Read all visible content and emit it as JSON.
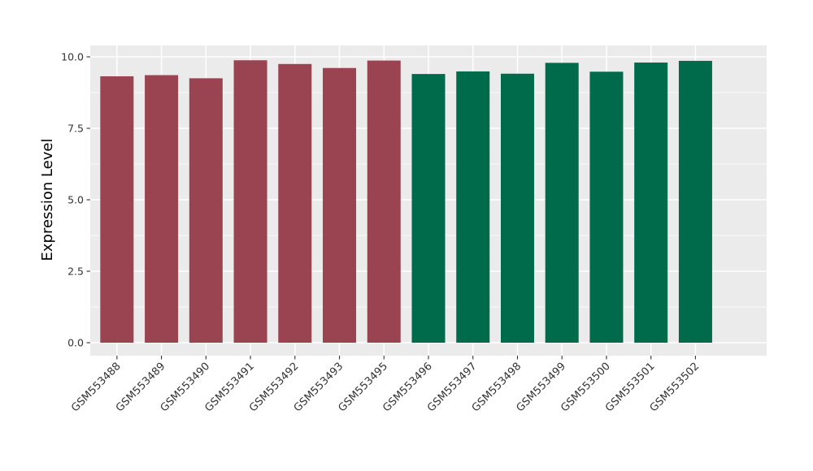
{
  "figure": {
    "background": "#FFFFFF",
    "panel_background": "#EBEBEB",
    "grid_major_color": "#FFFFFF",
    "grid_minor_color": "#FFFFFF",
    "tick_mark_color": "#333333",
    "tick_label_color": "#333333",
    "axis_title_color": "#000000"
  },
  "chart_data": {
    "type": "bar",
    "title": "",
    "xlabel": "",
    "ylabel": "Expression Level",
    "categories": [
      "GSM553488",
      "GSM553489",
      "GSM553490",
      "GSM553491",
      "GSM553492",
      "GSM553493",
      "GSM553495",
      "GSM553496",
      "GSM553497",
      "GSM553498",
      "GSM553499",
      "GSM553500",
      "GSM553501",
      "GSM553502"
    ],
    "values": [
      9.32,
      9.36,
      9.25,
      9.88,
      9.75,
      9.61,
      9.87,
      9.4,
      9.49,
      9.41,
      9.79,
      9.48,
      9.8,
      9.86
    ],
    "bar_colors": [
      "#9A4452",
      "#9A4452",
      "#9A4452",
      "#9A4452",
      "#9A4452",
      "#9A4452",
      "#9A4452",
      "#006B4A",
      "#006B4A",
      "#006B4A",
      "#006B4A",
      "#006B4A",
      "#006B4A",
      "#006B4A"
    ],
    "group_colors": {
      "left_group": "#9A4452",
      "right_group": "#006B4A"
    },
    "ylim": [
      0,
      10
    ],
    "yticks": [
      0,
      2.5,
      5,
      7.5,
      10
    ],
    "ytick_labels": [
      "0.0",
      "2.5",
      "5.0",
      "7.5",
      "10.0"
    ],
    "yminor_ticks": [
      1.25,
      3.75,
      6.25,
      8.75
    ],
    "grid": "major-and-minor",
    "legend": "none",
    "x_tick_rotation_deg": 45
  }
}
